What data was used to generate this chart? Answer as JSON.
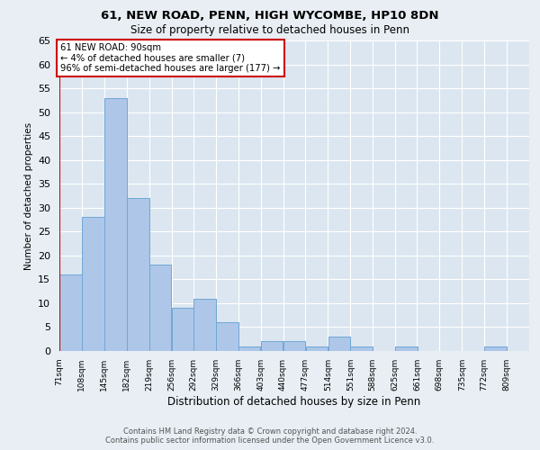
{
  "title1": "61, NEW ROAD, PENN, HIGH WYCOMBE, HP10 8DN",
  "title2": "Size of property relative to detached houses in Penn",
  "xlabel": "Distribution of detached houses by size in Penn",
  "ylabel": "Number of detached properties",
  "footnote1": "Contains HM Land Registry data © Crown copyright and database right 2024.",
  "footnote2": "Contains public sector information licensed under the Open Government Licence v3.0.",
  "annotation_line1": "61 NEW ROAD: 90sqm",
  "annotation_line2": "← 4% of detached houses are smaller (7)",
  "annotation_line3": "96% of semi-detached houses are larger (177) →",
  "bin_labels": [
    "71sqm",
    "108sqm",
    "145sqm",
    "182sqm",
    "219sqm",
    "256sqm",
    "292sqm",
    "329sqm",
    "366sqm",
    "403sqm",
    "440sqm",
    "477sqm",
    "514sqm",
    "551sqm",
    "588sqm",
    "625sqm",
    "661sqm",
    "698sqm",
    "735sqm",
    "772sqm",
    "809sqm"
  ],
  "bin_edges": [
    71,
    108,
    145,
    182,
    219,
    256,
    292,
    329,
    366,
    403,
    440,
    477,
    514,
    551,
    588,
    625,
    661,
    698,
    735,
    772,
    809
  ],
  "bar_heights": [
    16,
    28,
    53,
    32,
    18,
    9,
    11,
    6,
    1,
    2,
    2,
    1,
    3,
    1,
    0,
    1,
    0,
    0,
    0,
    1
  ],
  "bar_color": "#aec6e8",
  "bar_edge_color": "#6fa8d6",
  "bg_color": "#e8eef4",
  "plot_bg_color": "#dce6f0",
  "grid_color": "#ffffff",
  "annotation_box_color": "#ffffff",
  "annotation_border_color": "#cc0000",
  "reference_line_color": "#cc0000",
  "ylim": [
    0,
    65
  ],
  "yticks": [
    0,
    5,
    10,
    15,
    20,
    25,
    30,
    35,
    40,
    45,
    50,
    55,
    60,
    65
  ],
  "reference_line_x": 71
}
